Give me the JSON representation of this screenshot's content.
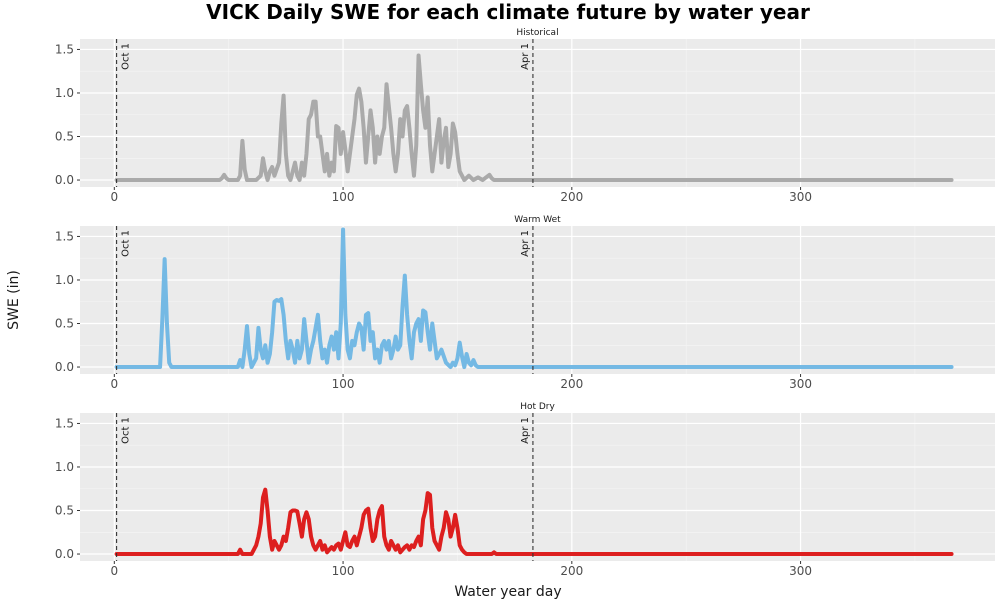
{
  "chart_data": {
    "type": "line",
    "title": "VICK Daily SWE for each climate future by water year",
    "xlabel": "Water year day",
    "ylabel": "SWE (in)",
    "xlim": [
      -15,
      385
    ],
    "ylim": [
      -0.08,
      1.62
    ],
    "x_ticks": [
      0,
      100,
      200,
      300
    ],
    "y_ticks": [
      0.0,
      0.5,
      1.0,
      1.5
    ],
    "y_tick_labels": [
      "0.0",
      "0.5",
      "1.0",
      "1.5"
    ],
    "grid": true,
    "reference_lines": [
      {
        "x": 1,
        "label": "Oct 1"
      },
      {
        "x": 183,
        "label": "Apr 1"
      }
    ],
    "panels": [
      {
        "name": "Historical",
        "color": "#aaaaaa",
        "x": [
          1,
          45,
          46,
          47,
          48,
          49,
          50,
          51,
          52,
          54,
          55,
          56,
          57,
          58,
          59,
          62,
          64,
          65,
          66,
          67,
          68,
          69,
          70,
          72,
          73,
          74,
          75,
          76,
          77,
          78,
          79,
          80,
          81,
          82,
          83,
          84,
          85,
          86,
          87,
          88,
          89,
          90,
          91,
          92,
          93,
          94,
          95,
          96,
          97,
          98,
          99,
          100,
          101,
          102,
          103,
          104,
          105,
          106,
          107,
          108,
          109,
          110,
          111,
          112,
          113,
          114,
          115,
          116,
          117,
          118,
          119,
          120,
          121,
          122,
          123,
          124,
          125,
          126,
          127,
          128,
          129,
          130,
          131,
          132,
          133,
          134,
          135,
          136,
          137,
          138,
          139,
          140,
          141,
          142,
          143,
          144,
          145,
          146,
          147,
          148,
          149,
          150,
          151,
          152,
          153,
          155,
          157,
          159,
          161,
          163,
          164,
          165,
          166,
          170,
          366
        ],
        "values": [
          0,
          0,
          0,
          0.02,
          0.06,
          0.02,
          0,
          0,
          0,
          0,
          0.05,
          0.45,
          0.12,
          0,
          0,
          0,
          0.05,
          0.25,
          0.1,
          0,
          0.1,
          0.15,
          0.05,
          0.2,
          0.65,
          0.97,
          0.3,
          0.05,
          0,
          0.1,
          0.2,
          0.05,
          0,
          0.2,
          0.05,
          0.3,
          0.7,
          0.75,
          0.9,
          0.9,
          0.5,
          0.5,
          0.3,
          0.1,
          0.3,
          0.05,
          0.2,
          0.1,
          0.62,
          0.6,
          0.3,
          0.55,
          0.35,
          0.1,
          0.3,
          0.5,
          0.7,
          0.98,
          1.05,
          0.9,
          0.6,
          0.2,
          0.5,
          0.8,
          0.6,
          0.2,
          0.5,
          0.3,
          0.5,
          0.6,
          1.1,
          0.85,
          0.6,
          0.3,
          0.1,
          0.3,
          0.7,
          0.5,
          0.8,
          0.85,
          0.6,
          0.3,
          0.05,
          0.4,
          1.43,
          1.1,
          0.8,
          0.6,
          0.95,
          0.4,
          0.1,
          0.3,
          0.5,
          0.7,
          0.2,
          0.45,
          0.6,
          0.15,
          0.3,
          0.65,
          0.55,
          0.3,
          0.1,
          0.05,
          0,
          0.05,
          0,
          0.03,
          0,
          0.04,
          0.06,
          0.02,
          0,
          0,
          0
        ]
      },
      {
        "name": "Warm Wet",
        "color": "#74b9e4",
        "x": [
          1,
          20,
          21,
          22,
          23,
          24,
          25,
          26,
          54,
          55,
          56,
          57,
          58,
          59,
          60,
          62,
          63,
          64,
          65,
          66,
          67,
          68,
          69,
          70,
          71,
          72,
          73,
          74,
          75,
          76,
          77,
          78,
          79,
          80,
          81,
          82,
          83,
          84,
          85,
          86,
          87,
          88,
          89,
          90,
          91,
          92,
          93,
          94,
          95,
          96,
          97,
          98,
          99,
          100,
          101,
          102,
          103,
          104,
          105,
          106,
          107,
          108,
          109,
          110,
          111,
          112,
          113,
          114,
          115,
          116,
          117,
          118,
          119,
          120,
          121,
          122,
          123,
          124,
          125,
          126,
          127,
          128,
          129,
          130,
          131,
          132,
          133,
          134,
          135,
          136,
          137,
          138,
          139,
          140,
          141,
          143,
          145,
          147,
          148,
          149,
          150,
          151,
          152,
          153,
          154,
          155,
          156,
          157,
          158,
          159,
          366
        ],
        "values": [
          0,
          0,
          0.55,
          1.24,
          0.5,
          0.05,
          0,
          0,
          0,
          0.08,
          0,
          0.2,
          0.47,
          0.15,
          0,
          0.1,
          0.45,
          0.2,
          0.1,
          0.25,
          0.05,
          0.15,
          0.4,
          0.75,
          0.77,
          0.76,
          0.78,
          0.6,
          0.3,
          0.1,
          0.3,
          0.2,
          0.05,
          0.3,
          0.1,
          0.2,
          0.55,
          0.3,
          0.05,
          0.2,
          0.3,
          0.45,
          0.6,
          0.3,
          0.1,
          0.2,
          0.05,
          0.25,
          0.35,
          0.2,
          0.4,
          0.1,
          0.5,
          1.58,
          0.6,
          0.2,
          0.1,
          0.3,
          0.25,
          0.4,
          0.5,
          0.45,
          0.2,
          0.6,
          0.62,
          0.3,
          0.4,
          0.1,
          0.2,
          0.05,
          0.25,
          0.3,
          0.2,
          0.3,
          0.1,
          0.2,
          0.35,
          0.2,
          0.25,
          0.7,
          1.05,
          0.6,
          0.3,
          0.1,
          0.4,
          0.5,
          0.55,
          0.3,
          0.65,
          0.63,
          0.4,
          0.2,
          0.5,
          0.3,
          0.1,
          0.2,
          0.05,
          0,
          0.05,
          0.02,
          0.1,
          0.28,
          0.12,
          0,
          0.15,
          0.05,
          0.02,
          0.08,
          0.02,
          0,
          0
        ]
      },
      {
        "name": "Hot Dry",
        "color": "#dd1f1f",
        "x": [
          1,
          53,
          54,
          55,
          56,
          60,
          62,
          63,
          64,
          65,
          66,
          67,
          68,
          69,
          70,
          71,
          72,
          73,
          74,
          75,
          76,
          77,
          78,
          79,
          80,
          81,
          82,
          83,
          84,
          85,
          86,
          87,
          88,
          89,
          90,
          91,
          92,
          93,
          94,
          95,
          96,
          97,
          98,
          99,
          100,
          101,
          102,
          103,
          104,
          105,
          106,
          107,
          108,
          109,
          110,
          111,
          112,
          113,
          114,
          115,
          116,
          117,
          118,
          119,
          120,
          121,
          122,
          123,
          124,
          125,
          126,
          127,
          128,
          129,
          130,
          131,
          132,
          133,
          134,
          135,
          136,
          137,
          138,
          139,
          140,
          141,
          142,
          143,
          144,
          145,
          146,
          147,
          148,
          149,
          150,
          151,
          152,
          153,
          154,
          155,
          156,
          157,
          158,
          159,
          160,
          161,
          162,
          163,
          164,
          165,
          166,
          167,
          366
        ],
        "values": [
          0,
          0,
          0,
          0.05,
          0,
          0,
          0.1,
          0.2,
          0.35,
          0.65,
          0.74,
          0.5,
          0.2,
          0.05,
          0.15,
          0.1,
          0.05,
          0.1,
          0.2,
          0.15,
          0.3,
          0.48,
          0.5,
          0.5,
          0.49,
          0.35,
          0.2,
          0.4,
          0.48,
          0.4,
          0.2,
          0.1,
          0.05,
          0.1,
          0.15,
          0.05,
          0.1,
          0.02,
          0.05,
          0.08,
          0.05,
          0.1,
          0.12,
          0.05,
          0.15,
          0.25,
          0.1,
          0.08,
          0.15,
          0.2,
          0.1,
          0.2,
          0.3,
          0.45,
          0.5,
          0.52,
          0.3,
          0.15,
          0.2,
          0.4,
          0.5,
          0.55,
          0.2,
          0.1,
          0.05,
          0.15,
          0.1,
          0.05,
          0.1,
          0.02,
          0.05,
          0.08,
          0.1,
          0.05,
          0.1,
          0.08,
          0.15,
          0.2,
          0.1,
          0.4,
          0.5,
          0.7,
          0.68,
          0.3,
          0.15,
          0.1,
          0.05,
          0.2,
          0.3,
          0.48,
          0.4,
          0.2,
          0.3,
          0.45,
          0.3,
          0.1,
          0.05,
          0.02,
          0,
          0,
          0,
          0,
          0,
          0,
          0,
          0,
          0,
          0,
          0,
          0,
          0.02,
          0,
          0
        ]
      }
    ]
  }
}
